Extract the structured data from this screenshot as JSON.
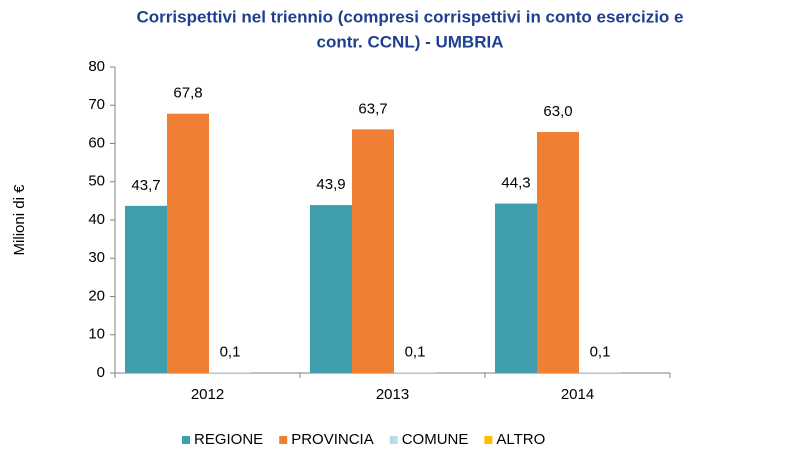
{
  "chart_data": {
    "type": "bar",
    "title": [
      "Corrispettivi nel triennio (compresi corrispettivi in conto esercizio e",
      "contr. CCNL) - UMBRIA"
    ],
    "y_label": "Milioni di €",
    "categories": [
      "2012",
      "2013",
      "2014"
    ],
    "series": [
      {
        "name": "REGIONE",
        "color": "#3f9dac",
        "values": [
          43.7,
          43.9,
          44.3
        ],
        "value_labels": [
          "43,7",
          "43,9",
          "44,3"
        ]
      },
      {
        "name": "PROVINCIA",
        "color": "#ef7f33",
        "values": [
          67.8,
          63.7,
          63.0
        ],
        "value_labels": [
          "67,8",
          "63,7",
          "63,0"
        ]
      },
      {
        "name": "COMUNE",
        "color": "#b7dde8",
        "values": [
          0.1,
          0.1,
          0.1
        ],
        "value_labels": [
          "0,1",
          "0,1",
          "0,1"
        ]
      },
      {
        "name": "ALTRO",
        "color": "#ffc000",
        "values": [
          0,
          0,
          0
        ]
      }
    ],
    "ylim": [
      0,
      80
    ],
    "yticks": [
      0,
      10,
      20,
      30,
      40,
      50,
      60,
      70,
      80
    ],
    "grid": false
  }
}
